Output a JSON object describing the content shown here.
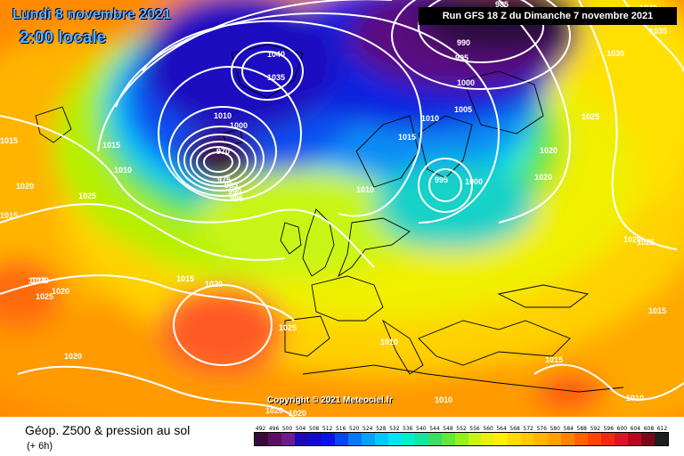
{
  "header": {
    "date_title": "Lundi 8 novembre 2021",
    "local_time": "2:00 locale",
    "run_banner": "Run GFS 18 Z du Dimanche 7 novembre 2021"
  },
  "map": {
    "copyright": "Copyright © 2021 Meteociel.fr",
    "isobar_labels": [
      "985",
      "1040",
      "990",
      "1035",
      "995",
      "1030",
      "1000",
      "1005",
      "1010",
      "1025",
      "1015",
      "1040",
      "1035",
      "1010",
      "1020",
      "1015",
      "1010",
      "1000",
      "970",
      "1015",
      "1010",
      "1020",
      "995",
      "1000",
      "975",
      "985",
      "990",
      "995",
      "1015",
      "1020",
      "1025",
      "1020",
      "1015",
      "1010",
      "1025",
      "1025",
      "1020",
      "1020",
      "1015",
      "1020",
      "1025",
      "1015",
      "1020",
      "1010",
      "1015",
      "1010",
      "1020",
      "1020"
    ]
  },
  "footer": {
    "title": "Géop. Z500 & pression au sol",
    "subtitle": "(+ 6h)"
  },
  "legend": {
    "values": [
      "492",
      "496",
      "500",
      "504",
      "508",
      "512",
      "516",
      "520",
      "524",
      "528",
      "532",
      "536",
      "540",
      "544",
      "548",
      "552",
      "556",
      "560",
      "564",
      "568",
      "572",
      "576",
      "580",
      "584",
      "588",
      "592",
      "596",
      "600",
      "604",
      "608",
      "612"
    ],
    "colors": [
      "#3b0a3c",
      "#5a0f64",
      "#6e1c8c",
      "#1e0ab4",
      "#140ad2",
      "#0a14e6",
      "#0a46f0",
      "#0a78f5",
      "#0aa0fa",
      "#00c8ff",
      "#00e6f0",
      "#00f0c8",
      "#14e6a0",
      "#3cdc64",
      "#64e63c",
      "#96f01e",
      "#c8f514",
      "#ebf00a",
      "#fff000",
      "#ffdc00",
      "#ffc800",
      "#ffb400",
      "#ffa000",
      "#ff8200",
      "#ff6400",
      "#ff4600",
      "#f02814",
      "#dc1428",
      "#b40a1e",
      "#780a14",
      "#1e1e1e"
    ]
  }
}
